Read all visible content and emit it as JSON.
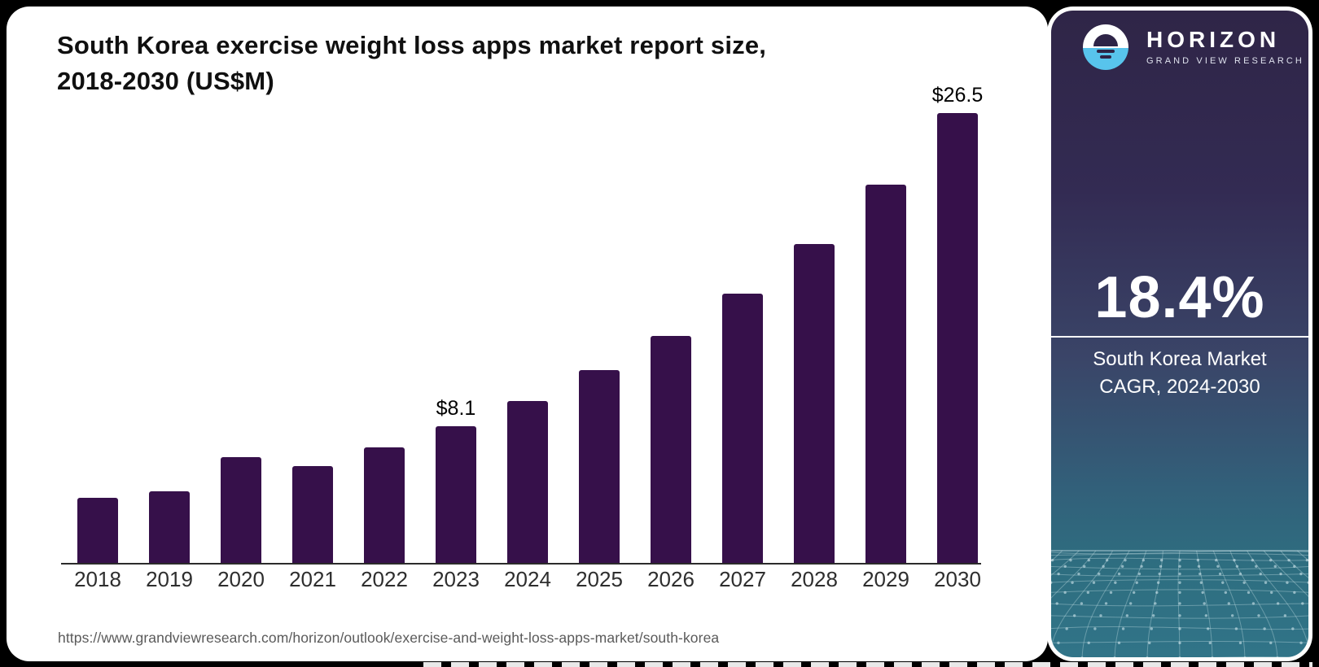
{
  "page": {
    "background": "#000000"
  },
  "chart_card": {
    "title_line1": "South Korea exercise weight loss apps market report size,",
    "title_line2": "2018-2030 (US$M)",
    "source_url": "https://www.grandviewresearch.com/horizon/outlook/exercise-and-weight-loss-apps-market/south-korea"
  },
  "chart_data": {
    "type": "bar",
    "title": "South Korea exercise weight loss apps market report size, 2018-2030 (US$M)",
    "unit": "US$M",
    "categories": [
      "2018",
      "2019",
      "2020",
      "2021",
      "2022",
      "2023",
      "2024",
      "2025",
      "2026",
      "2027",
      "2028",
      "2029",
      "2030"
    ],
    "values": [
      3.9,
      4.3,
      6.3,
      5.8,
      6.9,
      8.1,
      9.6,
      11.4,
      13.4,
      15.9,
      18.8,
      22.3,
      26.5
    ],
    "data_labels": [
      {
        "category": "2023",
        "text": "$8.1"
      },
      {
        "category": "2030",
        "text": "$26.5"
      }
    ],
    "bar_color": "#36104A",
    "axis_color": "#2b2b2b",
    "ylim": [
      0,
      26.5
    ],
    "grid": false,
    "legend": false
  },
  "sidebar": {
    "logo": {
      "brand": "HORIZON",
      "sub_brand": "GRAND VIEW RESEARCH",
      "icon": "horizon-sunset-icon",
      "icon_blue": "#58c4ec",
      "icon_dark": "#2e2447"
    },
    "stat_value": "18.4%",
    "stat_caption_line1": "South Korea Market",
    "stat_caption_line2": "CAGR, 2024-2030",
    "colors": {
      "gradient_top": "#2f2547",
      "gradient_bottom": "#317488"
    }
  }
}
